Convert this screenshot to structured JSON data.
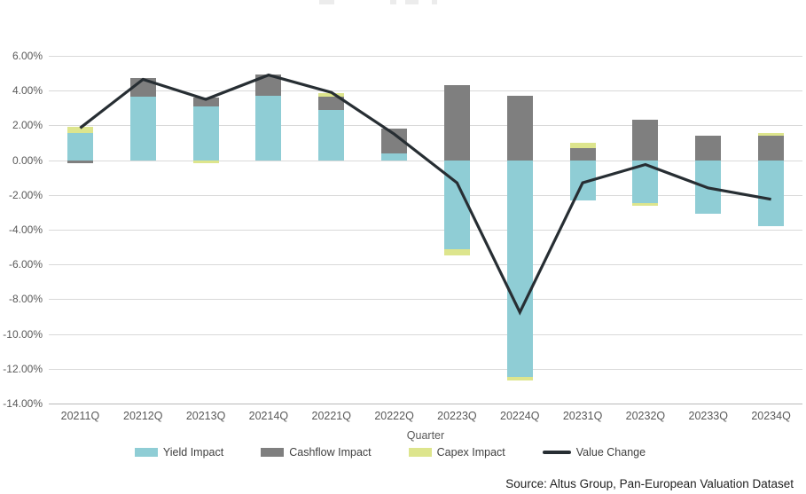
{
  "chart_data": {
    "type": "bar",
    "subtype": "stacked-bar-with-line-combo",
    "categories": [
      "20211Q",
      "20212Q",
      "20213Q",
      "20214Q",
      "20221Q",
      "20222Q",
      "20223Q",
      "20224Q",
      "20231Q",
      "20232Q",
      "20233Q",
      "20234Q"
    ],
    "series": [
      {
        "name": "Yield Impact",
        "type": "bar",
        "color": "#8fcdd5",
        "values": [
          1.55,
          3.65,
          3.1,
          3.7,
          2.9,
          0.4,
          -5.1,
          -12.45,
          -2.3,
          -2.45,
          -3.1,
          -3.8
        ]
      },
      {
        "name": "Cashflow Impact",
        "type": "bar",
        "color": "#7f7f7f",
        "values": [
          -0.15,
          1.05,
          0.5,
          1.25,
          0.75,
          1.4,
          4.3,
          3.7,
          0.7,
          2.35,
          1.4,
          1.4
        ]
      },
      {
        "name": "Capex Impact",
        "type": "bar",
        "color": "#dde58d",
        "values": [
          0.35,
          0.0,
          -0.15,
          0.0,
          0.2,
          0.0,
          -0.4,
          -0.2,
          0.3,
          -0.15,
          0.0,
          0.15
        ]
      },
      {
        "name": "Value Change",
        "type": "line",
        "color": "#272e33",
        "values": [
          1.85,
          4.65,
          3.5,
          4.9,
          3.9,
          1.5,
          -1.3,
          -8.75,
          -1.3,
          -0.25,
          -1.6,
          -2.25
        ]
      }
    ],
    "xlabel": "Quarter",
    "ylabel": "",
    "ylim": [
      -14,
      6
    ],
    "ytick_step": 2,
    "ytick_format": "0.00%",
    "grid": true,
    "legend_position": "bottom",
    "colors": {
      "gridline": "#d9d9d9",
      "axis_line": "#b9b9b9",
      "tick_text": "#595959",
      "background": "#ffffff"
    }
  },
  "source_note": "Source: Altus Group, Pan-European Valuation Dataset"
}
